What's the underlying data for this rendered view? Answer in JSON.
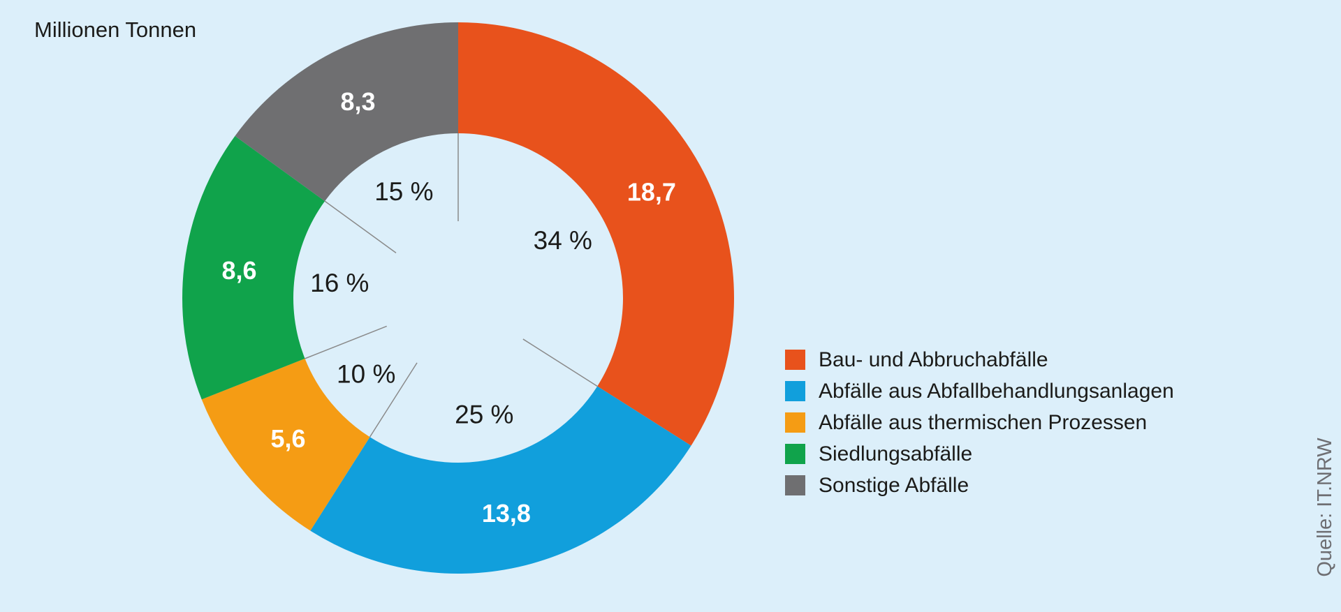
{
  "title": "Millionen Tonnen",
  "source": "Quelle: IT.NRW",
  "colors": {
    "background": "#DCEFFA",
    "text": "#1B1B19",
    "value_label_text": "#FFFFFF",
    "leader_line": "#8A8A8A",
    "source_text": "#6E6E72"
  },
  "chart_data": {
    "type": "pie",
    "subtype": "donut",
    "title": "Millionen Tonnen",
    "unit": "Millionen Tonnen",
    "start_angle_deg": 0,
    "direction": "clockwise",
    "legend_position": "right",
    "grid": false,
    "segments": [
      {
        "label": "Bau- und Abbruchabfälle",
        "value": 18.7,
        "value_label": "18,7",
        "percent": 34,
        "percent_label": "34 %",
        "color": "#E8521C"
      },
      {
        "label": "Abfälle aus Abfallbehandlungsanlagen",
        "value": 13.8,
        "value_label": "13,8",
        "percent": 25,
        "percent_label": "25 %",
        "color": "#119FDC"
      },
      {
        "label": "Abfälle aus thermischen Prozessen",
        "value": 5.6,
        "value_label": "5,6",
        "percent": 10,
        "percent_label": "10 %",
        "color": "#F59C14"
      },
      {
        "label": "Siedlungsabfälle",
        "value": 8.6,
        "value_label": "8,6",
        "percent": 16,
        "percent_label": "16 %",
        "color": "#10A34B"
      },
      {
        "label": "Sonstige Abfälle",
        "value": 8.3,
        "value_label": "8,3",
        "percent": 15,
        "percent_label": "15 %",
        "color": "#6F6F71"
      }
    ]
  }
}
